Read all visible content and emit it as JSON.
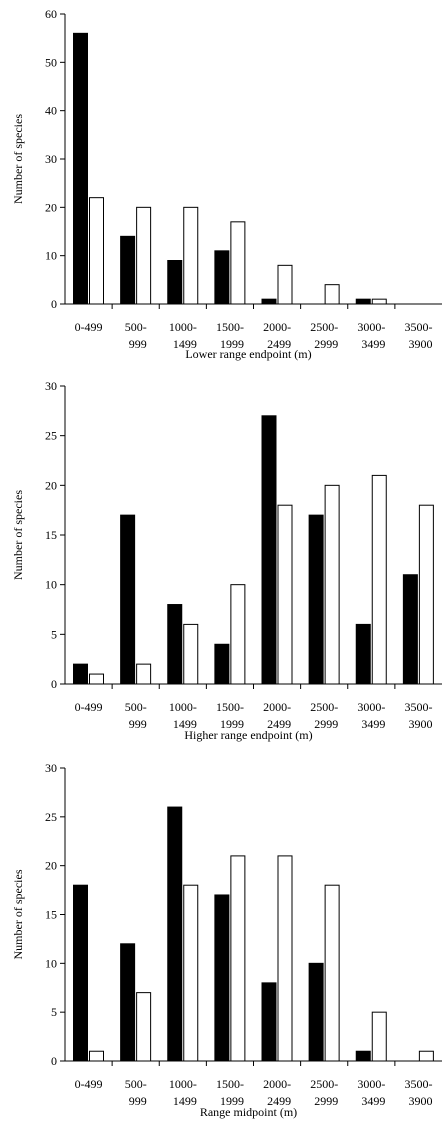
{
  "chart_data": [
    {
      "type": "bar",
      "categories": [
        [
          "0-499",
          ""
        ],
        [
          "500-",
          "999"
        ],
        [
          "1000-",
          "1499"
        ],
        [
          "1500-",
          "1999"
        ],
        [
          "2000-",
          "2499"
        ],
        [
          "2500-",
          "2999"
        ],
        [
          "3000-",
          "3499"
        ],
        [
          "3500-",
          "3900"
        ]
      ],
      "series": [
        {
          "fill": "#000000",
          "values": [
            56,
            14,
            9,
            11,
            1,
            0,
            1,
            0
          ]
        },
        {
          "fill": "#ffffff",
          "values": [
            22,
            20,
            20,
            17,
            8,
            4,
            1,
            0
          ]
        }
      ],
      "xlabel": "Lower range endpoint (m)",
      "ylabel": "Number of species",
      "ylim": [
        0,
        60
      ],
      "yticks": [
        "0",
        "10",
        "20",
        "30",
        "40",
        "50",
        "60"
      ]
    },
    {
      "type": "bar",
      "categories": [
        [
          "0-499",
          ""
        ],
        [
          "500-",
          "999"
        ],
        [
          "1000-",
          "1499"
        ],
        [
          "1500-",
          "1999"
        ],
        [
          "2000-",
          "2499"
        ],
        [
          "2500-",
          "2999"
        ],
        [
          "3000-",
          "3499"
        ],
        [
          "3500-",
          "3900"
        ]
      ],
      "series": [
        {
          "fill": "#000000",
          "values": [
            2,
            17,
            8,
            4,
            27,
            17,
            6,
            11
          ]
        },
        {
          "fill": "#ffffff",
          "values": [
            1,
            2,
            6,
            10,
            18,
            20,
            21,
            18
          ]
        }
      ],
      "xlabel": "Higher range endpoint (m)",
      "ylabel": "Number of species",
      "ylim": [
        0,
        30
      ],
      "yticks": [
        "0",
        "5",
        "10",
        "15",
        "20",
        "25",
        "30"
      ]
    },
    {
      "type": "bar",
      "categories": [
        [
          "0-499",
          ""
        ],
        [
          "500-",
          "999"
        ],
        [
          "1000-",
          "1499"
        ],
        [
          "1500-",
          "1999"
        ],
        [
          "2000-",
          "2499"
        ],
        [
          "2500-",
          "2999"
        ],
        [
          "3000-",
          "3499"
        ],
        [
          "3500-",
          "3900"
        ]
      ],
      "series": [
        {
          "fill": "#000000",
          "values": [
            18,
            12,
            26,
            17,
            8,
            10,
            1,
            0
          ]
        },
        {
          "fill": "#ffffff",
          "values": [
            1,
            7,
            18,
            21,
            21,
            18,
            5,
            1
          ]
        }
      ],
      "xlabel": "Range midpoint (m)",
      "ylabel": "Number of species",
      "ylim": [
        0,
        30
      ],
      "yticks": [
        "0",
        "5",
        "10",
        "15",
        "20",
        "25",
        "30"
      ]
    }
  ]
}
